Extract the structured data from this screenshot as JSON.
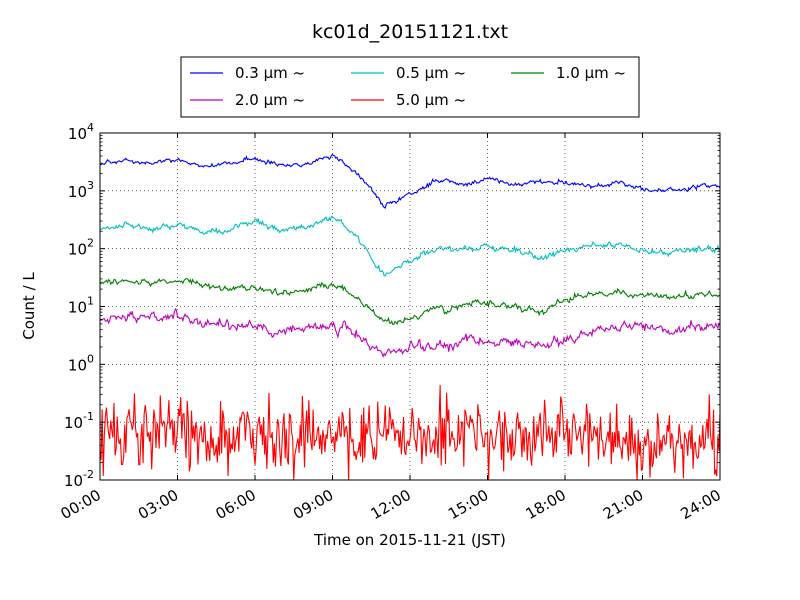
{
  "chart_data": {
    "type": "line",
    "title": "kc01d_20151121.txt",
    "xlabel": "Time on 2015-11-21 (JST)",
    "ylabel": "Count / L",
    "yscale": "log",
    "ylim": [
      0.01,
      10000
    ],
    "xlim": [
      "00:00",
      "24:00"
    ],
    "x_ticks": [
      "00:00",
      "03:00",
      "06:00",
      "09:00",
      "12:00",
      "15:00",
      "18:00",
      "21:00",
      "24:00"
    ],
    "y_ticks": [
      {
        "base": "10",
        "exp": "-2"
      },
      {
        "base": "10",
        "exp": "-1"
      },
      {
        "base": "10",
        "exp": "0"
      },
      {
        "base": "10",
        "exp": "1"
      },
      {
        "base": "10",
        "exp": "2"
      },
      {
        "base": "10",
        "exp": "3"
      },
      {
        "base": "10",
        "exp": "4"
      }
    ],
    "grid": true,
    "legend_position": "top-center",
    "x": [
      "00:00",
      "01:00",
      "02:00",
      "03:00",
      "04:00",
      "05:00",
      "06:00",
      "07:00",
      "08:00",
      "09:00",
      "10:00",
      "10:30",
      "11:00",
      "12:00",
      "13:00",
      "14:00",
      "15:00",
      "16:00",
      "17:00",
      "18:00",
      "19:00",
      "20:00",
      "21:00",
      "22:00",
      "23:00",
      "24:00"
    ],
    "series": [
      {
        "name": "0.3 μm ~",
        "color": "#0000ff",
        "noise": 0.03,
        "values": [
          2700,
          3200,
          2900,
          3500,
          2700,
          2800,
          3500,
          2700,
          2900,
          4000,
          2000,
          1100,
          550,
          900,
          1500,
          1300,
          1700,
          1300,
          1400,
          1400,
          1150,
          1400,
          1100,
          1000,
          1150,
          1200
        ]
      },
      {
        "name": "0.5 μm ~",
        "color": "#00bfbf",
        "noise": 0.04,
        "values": [
          200,
          250,
          220,
          270,
          200,
          210,
          280,
          210,
          230,
          360,
          150,
          70,
          33,
          60,
          100,
          95,
          120,
          95,
          65,
          90,
          120,
          120,
          95,
          85,
          95,
          100
        ]
      },
      {
        "name": "1.0 μm ~",
        "color": "#008000",
        "noise": 0.04,
        "values": [
          25,
          28,
          26,
          28,
          24,
          20,
          22,
          17,
          19,
          25,
          13,
          8,
          5,
          6,
          9,
          10,
          11,
          10,
          8,
          13,
          16,
          18,
          16,
          14,
          15,
          16
        ]
      },
      {
        "name": "2.0 μm ~",
        "color": "#bf00bf",
        "noise": 0.06,
        "values": [
          6,
          6.5,
          6.2,
          7,
          5.5,
          4.5,
          4.5,
          3.8,
          4.3,
          5,
          3,
          2,
          1.5,
          1.9,
          2.3,
          2.6,
          2.4,
          2.3,
          2,
          2.6,
          3.8,
          4.3,
          4.6,
          4.2,
          4.2,
          4.8
        ]
      },
      {
        "name": "5.0 μm ~",
        "color": "#ff0000",
        "noise": 0.45,
        "values": [
          0.06,
          0.07,
          0.065,
          0.08,
          0.05,
          0.05,
          0.06,
          0.05,
          0.06,
          0.06,
          0.05,
          0.06,
          0.07,
          0.06,
          0.06,
          0.055,
          0.06,
          0.05,
          0.05,
          0.055,
          0.06,
          0.05,
          0.04,
          0.04,
          0.045,
          0.045
        ]
      }
    ]
  }
}
